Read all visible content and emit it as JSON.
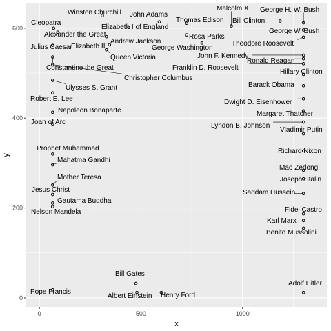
{
  "chart_data": {
    "type": "scatter",
    "title": "",
    "xlabel": "x",
    "ylabel": "y",
    "xlim": [
      -65,
      1415
    ],
    "ylim": [
      -20,
      655
    ],
    "x_ticks": [
      0,
      500,
      1000
    ],
    "y_ticks": [
      0,
      200,
      400,
      600
    ],
    "x_tick_labels": [
      "0",
      "500",
      "1000"
    ],
    "y_tick_labels": [
      "0",
      "200",
      "400",
      "600"
    ],
    "grid": true,
    "legend": "none",
    "points": [
      {
        "label": "Winston Churchill",
        "x": 310,
        "y": 628
      },
      {
        "label": "John Adams",
        "x": 590,
        "y": 614
      },
      {
        "label": "Malcolm X",
        "x": 945,
        "y": 605
      },
      {
        "label": "George H. W. Bush",
        "x": 1300,
        "y": 612
      },
      {
        "label": "Cleopatra",
        "x": 70,
        "y": 600
      },
      {
        "label": "Elizabeth I of England",
        "x": 440,
        "y": 602
      },
      {
        "label": "Thomas Edison",
        "x": 725,
        "y": 611
      },
      {
        "label": "Bill Clinton",
        "x": 1185,
        "y": 616
      },
      {
        "label": "Alexander the Great",
        "x": 90,
        "y": 591
      },
      {
        "label": "Rosa Parks",
        "x": 725,
        "y": 585
      },
      {
        "label": "George W. Bush",
        "x": 1300,
        "y": 596
      },
      {
        "label": "Andrew Jackson",
        "x": 330,
        "y": 581
      },
      {
        "label": "Theodore Roosevelt",
        "x": 1300,
        "y": 580
      },
      {
        "label": "Julius Caesar",
        "x": 65,
        "y": 562
      },
      {
        "label": "Elizabeth II",
        "x": 345,
        "y": 563
      },
      {
        "label": "George Washington",
        "x": 800,
        "y": 567
      },
      {
        "label": "Queen Victoria",
        "x": 330,
        "y": 552
      },
      {
        "label": "John F. Kennedy",
        "x": 1300,
        "y": 540
      },
      {
        "label": "Ronald Reagan",
        "x": 1300,
        "y": 532
      },
      {
        "label": "Constantine the Great",
        "x": 65,
        "y": 536
      },
      {
        "label": "Franklin D. Roosevelt",
        "x": 1300,
        "y": 521
      },
      {
        "label": "Hillary Clinton",
        "x": 1300,
        "y": 497
      },
      {
        "label": "Christopher Columbus",
        "x": 65,
        "y": 519
      },
      {
        "label": "Ulysses S. Grant",
        "x": 65,
        "y": 484
      },
      {
        "label": "Barack Obama",
        "x": 1300,
        "y": 472
      },
      {
        "label": "Robert E. Lee",
        "x": 65,
        "y": 456
      },
      {
        "label": "Dwight D. Eisenhower",
        "x": 1300,
        "y": 443
      },
      {
        "label": "Napoleon Bonaparte",
        "x": 65,
        "y": 413
      },
      {
        "label": "Margaret Thatcher",
        "x": 1300,
        "y": 416
      },
      {
        "label": "Joan of Arc",
        "x": 65,
        "y": 387
      },
      {
        "label": "Lyndon B. Johnson",
        "x": 1300,
        "y": 391
      },
      {
        "label": "Vladimir Putin",
        "x": 1300,
        "y": 365
      },
      {
        "label": "Prophet Muhammad",
        "x": 65,
        "y": 320
      },
      {
        "label": "Richard Nixon",
        "x": 1300,
        "y": 327
      },
      {
        "label": "Mahatma Gandhi",
        "x": 65,
        "y": 296
      },
      {
        "label": "Mao Zedong",
        "x": 1300,
        "y": 284
      },
      {
        "label": "Mother Teresa",
        "x": 65,
        "y": 251
      },
      {
        "label": "Joseph Stalin",
        "x": 1300,
        "y": 265
      },
      {
        "label": "Jesus Christ",
        "x": 65,
        "y": 230
      },
      {
        "label": "Saddam Hussein",
        "x": 1300,
        "y": 232
      },
      {
        "label": "Gautama Buddha",
        "x": 65,
        "y": 211
      },
      {
        "label": "Nelson Mandela",
        "x": 65,
        "y": 203
      },
      {
        "label": "Fidel Castro",
        "x": 1300,
        "y": 187
      },
      {
        "label": "Karl Marx",
        "x": 1300,
        "y": 172
      },
      {
        "label": "Benito Mussolini",
        "x": 1300,
        "y": 155
      },
      {
        "label": "Bill Gates",
        "x": 475,
        "y": 32
      },
      {
        "label": "Pope Francis",
        "x": 65,
        "y": 18
      },
      {
        "label": "Adolf Hitler",
        "x": 1300,
        "y": 12
      },
      {
        "label": "Albert Einstein",
        "x": 480,
        "y": 12
      },
      {
        "label": "Henry Ford",
        "x": 600,
        "y": 12
      }
    ]
  }
}
